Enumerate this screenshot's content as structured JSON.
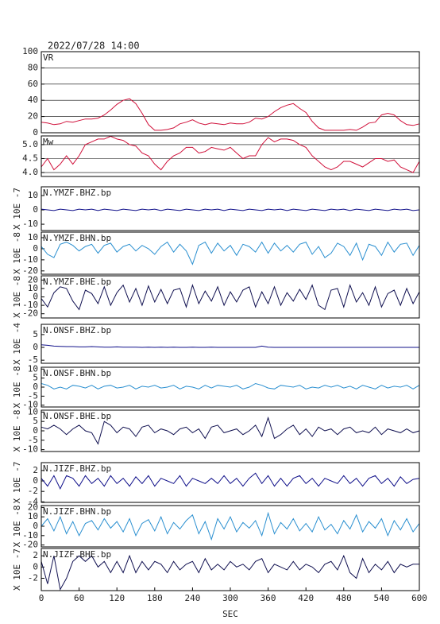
{
  "chart_data": {
    "type": "line",
    "title": "2022/07/28 14:00",
    "xlabel": "SEC",
    "xlim": [
      0,
      600
    ],
    "xticks": [
      0,
      60,
      120,
      180,
      240,
      300,
      360,
      420,
      480,
      540,
      600
    ],
    "x": [
      0,
      10,
      20,
      30,
      40,
      50,
      60,
      70,
      80,
      90,
      100,
      110,
      120,
      130,
      140,
      150,
      160,
      170,
      180,
      190,
      200,
      210,
      220,
      230,
      240,
      250,
      260,
      270,
      280,
      290,
      300,
      310,
      320,
      330,
      340,
      350,
      360,
      370,
      380,
      390,
      400,
      410,
      420,
      430,
      440,
      450,
      460,
      470,
      480,
      490,
      500,
      510,
      520,
      530,
      540,
      550,
      560,
      570,
      580,
      590,
      600
    ],
    "panels": [
      {
        "label": "VR",
        "color": "#d0103a",
        "grid": true,
        "ylim": [
          0,
          100
        ],
        "yticks": [
          0,
          20,
          40,
          60,
          80,
          100
        ],
        "values": [
          13,
          12,
          10,
          11,
          14,
          13,
          15,
          17,
          17,
          18,
          22,
          28,
          35,
          40,
          42,
          36,
          24,
          10,
          3,
          3,
          4,
          6,
          11,
          13,
          16,
          12,
          10,
          12,
          11,
          10,
          12,
          11,
          11,
          13,
          18,
          17,
          20,
          26,
          31,
          34,
          36,
          30,
          25,
          14,
          6,
          3,
          3,
          3,
          3,
          4,
          3,
          7,
          12,
          13,
          22,
          24,
          22,
          15,
          10,
          9,
          11
        ]
      },
      {
        "label": "Mw",
        "color": "#d0103a",
        "grid": true,
        "ylim": [
          3.86,
          5.31
        ],
        "yticks": [
          {
            "value": 4,
            "label": "4.0"
          },
          {
            "value": 4.5,
            "label": "4.5"
          },
          {
            "value": 5,
            "label": "5.0"
          }
        ],
        "values": [
          4.2,
          4.5,
          4.1,
          4.3,
          4.6,
          4.3,
          4.6,
          5.0,
          5.1,
          5.2,
          5.2,
          5.3,
          5.2,
          5.15,
          5.0,
          4.95,
          4.7,
          4.6,
          4.3,
          4.1,
          4.4,
          4.6,
          4.7,
          4.9,
          4.9,
          4.7,
          4.75,
          4.9,
          4.85,
          4.8,
          4.9,
          4.7,
          4.5,
          4.6,
          4.6,
          5.0,
          5.25,
          5.1,
          5.2,
          5.2,
          5.15,
          5.0,
          4.9,
          4.6,
          4.4,
          4.2,
          4.1,
          4.2,
          4.4,
          4.4,
          4.3,
          4.2,
          4.35,
          4.5,
          4.5,
          4.4,
          4.45,
          4.2,
          4.1,
          4.0,
          4.4
        ]
      },
      {
        "label": "N.YMZF.BHZ.bp",
        "ylabel": "X 10E -7",
        "color": "#10108a",
        "ylim": [
          -14.4,
          16.1
        ],
        "yticks": [
          10,
          0,
          -10
        ],
        "values": [
          0.5,
          0,
          -0.5,
          0.5,
          0,
          -0.5,
          0.5,
          0,
          0.5,
          -0.5,
          0.5,
          0,
          -0.5,
          0.5,
          0,
          -0.5,
          0.5,
          0,
          0.5,
          -0.5,
          0.5,
          0,
          -0.5,
          0.5,
          0,
          -0.5,
          0.5,
          0,
          0.5,
          -0.5,
          0.5,
          0,
          -0.5,
          0.5,
          0,
          -0.5,
          0.5,
          0,
          0.5,
          -0.5,
          0.5,
          0,
          -0.5,
          0.5,
          0,
          -0.5,
          0.5,
          0,
          0.5,
          -0.5,
          0.5,
          0,
          -0.5,
          0.5,
          0,
          -0.5,
          0.5,
          0,
          0.5,
          -0.5,
          0
        ]
      },
      {
        "label": "N.YMZF.BHN.bp",
        "ylabel": "X 10E -8",
        "color": "#2a8fd0",
        "ylim": [
          -23,
          15
        ],
        "yticks": [
          10,
          0,
          -10,
          -20
        ],
        "values": [
          2,
          -5,
          -8,
          4,
          6,
          3,
          -2,
          2,
          4,
          -4,
          3,
          5,
          -3,
          2,
          4,
          -2,
          3,
          0,
          -5,
          2,
          6,
          -3,
          4,
          -2,
          -14,
          3,
          6,
          -4,
          5,
          -2,
          3,
          -6,
          4,
          2,
          -3,
          6,
          -4,
          5,
          -2,
          3,
          -3,
          4,
          6,
          -5,
          2,
          -8,
          -4,
          5,
          2,
          -6,
          5,
          -10,
          4,
          2,
          -6,
          6,
          -3,
          4,
          5,
          -6,
          3
        ]
      },
      {
        "label": "N.YMZF.BHE.bp",
        "ylabel": "X 10E -8",
        "color": "#101050",
        "ylim": [
          -25,
          25
        ],
        "yticks": [
          20,
          10,
          0,
          -10,
          -20
        ],
        "values": [
          -2,
          -12,
          5,
          12,
          10,
          -5,
          -15,
          8,
          4,
          -8,
          12,
          -10,
          5,
          14,
          -6,
          10,
          -10,
          13,
          -6,
          9,
          -8,
          8,
          10,
          -12,
          14,
          -8,
          7,
          -5,
          12,
          -10,
          6,
          -6,
          8,
          12,
          -12,
          6,
          -8,
          12,
          -10,
          5,
          -5,
          9,
          -3,
          14,
          -10,
          -15,
          8,
          10,
          -12,
          14,
          -6,
          5,
          -10,
          12,
          -12,
          4,
          8,
          -10,
          10,
          -8,
          6
        ]
      },
      {
        "label": "N.ONSF.BHZ.bp",
        "ylabel": "X 10E -4",
        "color": "#10108a",
        "ylim": [
          -6.2,
          9
        ],
        "yticks": [
          5,
          0,
          -5
        ],
        "values": [
          1,
          0.8,
          0.5,
          0.4,
          0.3,
          0.3,
          0.2,
          0.2,
          0.3,
          0.2,
          0.1,
          0.1,
          0.2,
          0.1,
          0.1,
          0.1,
          0,
          0.1,
          0,
          0.1,
          0,
          0.1,
          0,
          0,
          0.1,
          0,
          0,
          0.1,
          0,
          0,
          0,
          0,
          0,
          0,
          0,
          0.5,
          0.1,
          0,
          0,
          0,
          0,
          0,
          0,
          0,
          0,
          0,
          0,
          0,
          0,
          0,
          0,
          0,
          0,
          0,
          0,
          0,
          0,
          0,
          0,
          0,
          0
        ]
      },
      {
        "label": "N.ONSF.BHN.bp",
        "ylabel": "X 10E -8",
        "color": "#2a8fd0",
        "ylim": [
          -11,
          11
        ],
        "yticks": [
          10,
          5,
          0,
          -5,
          -10
        ],
        "values": [
          2,
          1,
          -1,
          0,
          -1,
          1,
          0.5,
          -0.5,
          1,
          -1,
          0.5,
          1,
          -0.5,
          0,
          1,
          -1,
          0.5,
          0,
          1,
          -0.5,
          0,
          1,
          -1,
          0.5,
          0,
          -1,
          1,
          -0.5,
          1,
          0.5,
          0,
          1,
          -1,
          0,
          2,
          1,
          -0.5,
          -1,
          1,
          0.5,
          0,
          1,
          -1,
          0,
          -0.5,
          1,
          0,
          1,
          -0.5,
          0.5,
          -1,
          1,
          0,
          -1,
          1,
          -0.5,
          0.5,
          0,
          1,
          -1,
          1
        ]
      },
      {
        "label": "N.ONSF.BHE.bp",
        "ylabel": "X 10E -8",
        "color": "#101050",
        "ylim": [
          -11,
          11
        ],
        "yticks": [
          10,
          5,
          0,
          -5,
          -10
        ],
        "values": [
          2,
          1,
          3,
          1,
          -2,
          1,
          3,
          0,
          -1,
          -7,
          5,
          3,
          -1,
          2,
          1,
          -3,
          2,
          3,
          -1,
          1,
          0,
          -2,
          1,
          2,
          -1,
          1,
          -4,
          2,
          3,
          -1,
          0,
          1,
          -2,
          0,
          3,
          -3,
          7,
          -4,
          -2,
          1,
          3,
          -2,
          1,
          -3,
          2,
          0,
          1,
          -2,
          1,
          2,
          -1,
          0,
          -1,
          2,
          -2,
          1,
          0,
          -1,
          1,
          -1,
          0
        ]
      },
      {
        "label": "N.JIZF.BHZ.bp",
        "ylabel": "X 10E -7",
        "color": "#10108a",
        "ylim": [
          -4.1,
          3.5
        ],
        "yticks": [
          2,
          0,
          -2,
          -4
        ],
        "values": [
          0.5,
          -1,
          1,
          -1.5,
          1,
          0.5,
          -1,
          1,
          -0.5,
          0.5,
          -1,
          1,
          -0.5,
          0.5,
          -1,
          0.8,
          -0.5,
          1,
          -1,
          0.5,
          0,
          -0.5,
          1,
          -1,
          0.5,
          0,
          -0.5,
          0.5,
          -0.5,
          1,
          -0.5,
          0.5,
          -1,
          0.5,
          1.5,
          -0.5,
          1,
          -1,
          0.5,
          -1,
          0.5,
          1,
          -0.5,
          0.5,
          -1,
          0.5,
          0,
          -0.5,
          1,
          -0.5,
          0.5,
          -1,
          0.5,
          1,
          -0.5,
          0.5,
          -1,
          0.8,
          -0.5,
          0.3,
          0.5
        ]
      },
      {
        "label": "N.JIZF.BHN.bp",
        "ylabel": "X 10E -8",
        "color": "#2a8fd0",
        "ylim": [
          -22,
          22
        ],
        "yticks": [
          20,
          10,
          0,
          -10,
          -20
        ],
        "values": [
          0,
          8,
          -5,
          10,
          -8,
          5,
          -10,
          3,
          6,
          -4,
          8,
          -2,
          5,
          -6,
          8,
          -10,
          3,
          7,
          -5,
          10,
          -8,
          4,
          -3,
          6,
          12,
          -8,
          5,
          -14,
          8,
          -3,
          10,
          -6,
          4,
          -2,
          6,
          -10,
          14,
          -8,
          4,
          -3,
          8,
          -5,
          3,
          -6,
          10,
          -4,
          2,
          -8,
          6,
          -3,
          12,
          -6,
          5,
          -2,
          8,
          -10,
          6,
          -4,
          8,
          -6,
          3
        ]
      },
      {
        "label": "N.JIZF.BHE.bp",
        "ylabel": "X 10E -7",
        "color": "#101050",
        "ylim": [
          -4.2,
          3.3
        ],
        "yticks": [
          2,
          0,
          -2
        ],
        "values": [
          1,
          -3,
          2,
          -4,
          -2,
          1,
          2,
          1,
          2,
          0,
          1,
          -1,
          1,
          -1,
          2,
          -1,
          1,
          -0.5,
          1,
          0.5,
          -1,
          1,
          -0.5,
          0.5,
          1,
          -1,
          1.5,
          -0.5,
          0.5,
          -0.5,
          1,
          0,
          0.5,
          -0.5,
          1,
          1.5,
          -1,
          0.5,
          0,
          -0.5,
          1,
          -0.5,
          0.5,
          0,
          -1,
          0.5,
          1,
          -0.5,
          2,
          -1,
          -2,
          1.5,
          -1,
          0.5,
          -0.5,
          1,
          -1,
          0.5,
          0,
          0.5,
          0.5
        ]
      }
    ]
  }
}
